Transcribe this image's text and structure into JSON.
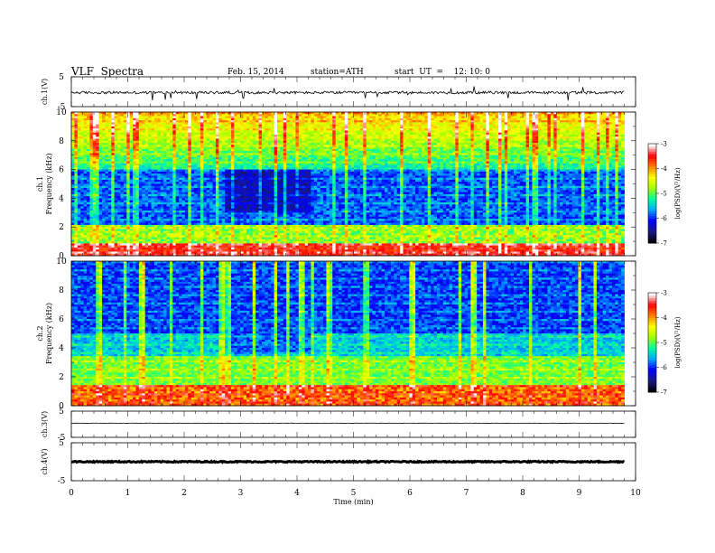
{
  "header": {
    "title": "VLF  Spectra",
    "date": "Feb. 15, 2014",
    "station": "station=ATH",
    "start": "start  UT  =    12: 10: 0"
  },
  "colors": {
    "colormap": [
      "#000000",
      "#1a1a8c",
      "#0000ff",
      "#00a8ff",
      "#00ffa0",
      "#a0ff00",
      "#ffff00",
      "#ff8000",
      "#ff0000",
      "#ffffff"
    ]
  },
  "chart_data": [
    {
      "type": "line",
      "panel": "ch1-waveform",
      "ylabel": "ch.1(V)",
      "ylim": [
        -5,
        5
      ],
      "yticks": [
        "5",
        "-5"
      ],
      "xlim": [
        0,
        10
      ],
      "baseline": -0.3,
      "description_range": [
        -1.2,
        1.0
      ]
    },
    {
      "type": "heatmap",
      "panel": "ch1-spectrogram",
      "ylabel": "ch.1\nFrequency  (kHz)",
      "ylabel_top": "ch.1",
      "ylabel_bottom": "Frequency  (kHz)",
      "ylim": [
        0,
        10
      ],
      "yticks": [
        "0",
        "2",
        "4",
        "6",
        "8",
        "10"
      ],
      "xlim": [
        0,
        9.8
      ],
      "colorbar": {
        "label": "log(PSD)(V²/Hz)",
        "ticks": [
          "-3",
          "-4",
          "-5",
          "-6",
          "-7"
        ],
        "range": [
          -7,
          -3
        ]
      }
    },
    {
      "type": "heatmap",
      "panel": "ch2-spectrogram",
      "ylabel_top": "ch.2",
      "ylabel_bottom": "Frequency  (kHz)",
      "ylim": [
        0,
        10
      ],
      "yticks": [
        "0",
        "2",
        "4",
        "6",
        "8",
        "10"
      ],
      "xlim": [
        0,
        9.8
      ],
      "colorbar": {
        "label": "log(PSD)(V²/Hz)",
        "ticks": [
          "-3",
          "-4",
          "-5",
          "-6",
          "-7"
        ],
        "range": [
          -7,
          -3
        ]
      }
    },
    {
      "type": "line",
      "panel": "ch3-waveform",
      "ylabel": "ch.3(V)",
      "ylim": [
        -5,
        5
      ],
      "yticks": [
        "5",
        "-5"
      ],
      "baseline": 0.4
    },
    {
      "type": "line",
      "panel": "ch4-waveform",
      "ylabel": "ch.4(V)",
      "ylim": [
        -5,
        5
      ],
      "yticks": [
        "5",
        "-5"
      ],
      "baseline": 0.0
    }
  ],
  "xaxis": {
    "label": "Time  (min)",
    "ticks": [
      "0",
      "1",
      "2",
      "3",
      "4",
      "5",
      "6",
      "7",
      "8",
      "9",
      "10"
    ],
    "range": [
      0,
      10
    ]
  }
}
